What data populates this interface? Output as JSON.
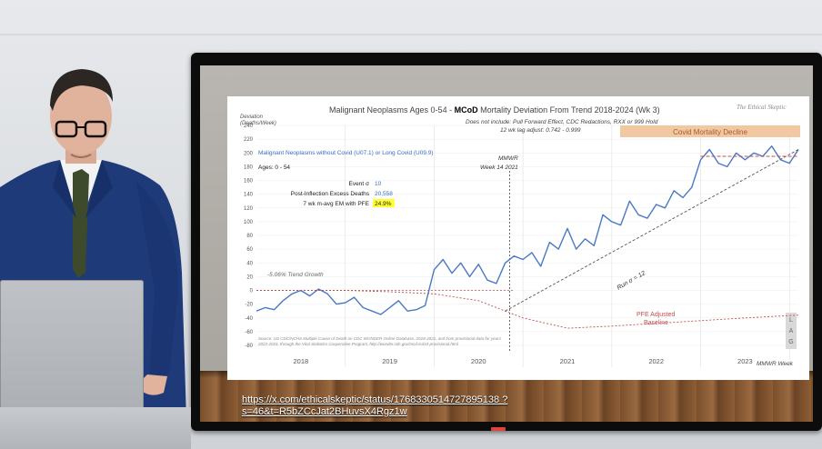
{
  "slide": {
    "ylabel": "Deviation\n(Deaths/Week)",
    "title_pre": "Malignant Neoplasms Ages 0-54 - ",
    "title_bold": "MCoD",
    "title_post": " Mortality Deviation From Trend  2018-2024 (Wk 3)",
    "subtitle1": "Does not include: Pull Forward Effect,  CDC Redactions, RXX or 999 Hold",
    "subtitle2": "12 wk lag adjust: 0.742 - 0.999",
    "brand": "The Ethical Skeptic",
    "banner": "Covid Mortality Decline",
    "series_label": "Malignant Neoplasms without Covid (U07.1) or Long Covid (U09.9)",
    "ages": "Ages: 0 - 54",
    "mmwr_note_1": "MMWR",
    "mmwr_note_2": "Week 14 2021",
    "stats": [
      {
        "label": "Event σ",
        "value": "10"
      },
      {
        "label": "Post-Inflection Excess Deaths",
        "value": "20,558"
      },
      {
        "label": "7 wk m-avg EM with PFE",
        "value": "24.9%"
      }
    ],
    "trend_label": "-5.06% Trend Growth",
    "run_label": "Run σ = 12",
    "pfe_label_1": "PFE Adjusted",
    "pfe_label_2": "Baseline",
    "lag_letters": [
      "L",
      "A",
      "G"
    ],
    "source": "Source: US CDC/NCHS Multiple Cause of Death on CDC WONDER Online Database, 2018-2021, and from provisional data for years 2022-2024, through the Vital Statistics Cooperative Program, http://wonder.cdc.gov/mcd-icd10-provisional.html",
    "xaxis_label": "MMWR Week"
  },
  "url_text": "https://x.com/ethicalskeptic/status/1768330514727895138 ?s=46&t=R5bZCcJat2BHuvsX4Rgz1w",
  "chart_data": {
    "type": "line",
    "title": "Malignant Neoplasms Ages 0-54 - MCoD Mortality Deviation From Trend  2018-2024 (Wk 3)",
    "xlabel": "MMWR Week",
    "ylabel": "Deviation (Deaths/Week)",
    "ylim": [
      -80,
      240
    ],
    "yticks": [
      240,
      220,
      200,
      180,
      160,
      140,
      120,
      100,
      80,
      60,
      40,
      20,
      0,
      -20,
      -40,
      -60,
      -80
    ],
    "xticks": [
      "2018",
      "2019",
      "2020",
      "2021",
      "2022",
      "2023"
    ],
    "xlim": [
      2018.0,
      2024.1
    ],
    "grid": true,
    "series": [
      {
        "name": "Malignant Neoplasms without Covid (U07.1) or Long Covid (U09.9)",
        "color": "#4a78c4",
        "x": [
          2018.0,
          2018.1,
          2018.2,
          2018.3,
          2018.4,
          2018.5,
          2018.6,
          2018.7,
          2018.8,
          2018.9,
          2019.0,
          2019.1,
          2019.2,
          2019.3,
          2019.4,
          2019.5,
          2019.6,
          2019.7,
          2019.8,
          2019.9,
          2020.0,
          2020.1,
          2020.2,
          2020.3,
          2020.4,
          2020.5,
          2020.6,
          2020.7,
          2020.8,
          2020.9,
          2021.0,
          2021.1,
          2021.2,
          2021.3,
          2021.4,
          2021.5,
          2021.6,
          2021.7,
          2021.8,
          2021.9,
          2022.0,
          2022.1,
          2022.2,
          2022.3,
          2022.4,
          2022.5,
          2022.6,
          2022.7,
          2022.8,
          2022.9,
          2023.0,
          2023.1,
          2023.2,
          2023.3,
          2023.4,
          2023.5,
          2023.6,
          2023.7,
          2023.8,
          2023.9,
          2024.0,
          2024.1
        ],
        "y": [
          -30,
          -25,
          -28,
          -15,
          -5,
          0,
          -8,
          2,
          -5,
          -20,
          -18,
          -10,
          -25,
          -30,
          -35,
          -25,
          -15,
          -30,
          -28,
          -22,
          30,
          45,
          25,
          40,
          20,
          38,
          15,
          10,
          40,
          50,
          45,
          55,
          35,
          70,
          60,
          90,
          60,
          75,
          65,
          110,
          100,
          95,
          130,
          110,
          105,
          125,
          120,
          145,
          135,
          150,
          190,
          205,
          185,
          180,
          200,
          190,
          200,
          195,
          210,
          190,
          185,
          205
        ]
      },
      {
        "name": "PFE Adjusted Baseline",
        "color": "#c0504d",
        "x": [
          2018.0,
          2018.5,
          2019.0,
          2019.5,
          2020.0,
          2020.5,
          2021.0,
          2021.5,
          2022.0,
          2022.5,
          2023.0,
          2023.5,
          2024.1
        ],
        "y": [
          0,
          0,
          0,
          -2,
          -5,
          -15,
          -40,
          -55,
          -52,
          -48,
          -44,
          -40,
          -36
        ]
      },
      {
        "name": "Run σ = 12",
        "color": "#555555",
        "x": [
          2020.8,
          2024.1
        ],
        "y": [
          -30,
          205
        ]
      },
      {
        "name": "Covid Mortality Decline level",
        "color": "#c0504d",
        "x": [
          2023.0,
          2024.1
        ],
        "y": [
          195,
          195
        ]
      }
    ],
    "annotations": [
      "MMWR Week 14 2021",
      "-5.06% Trend Growth",
      "Run σ = 12",
      "PFE Adjusted Baseline",
      "Covid Mortality Decline"
    ]
  }
}
